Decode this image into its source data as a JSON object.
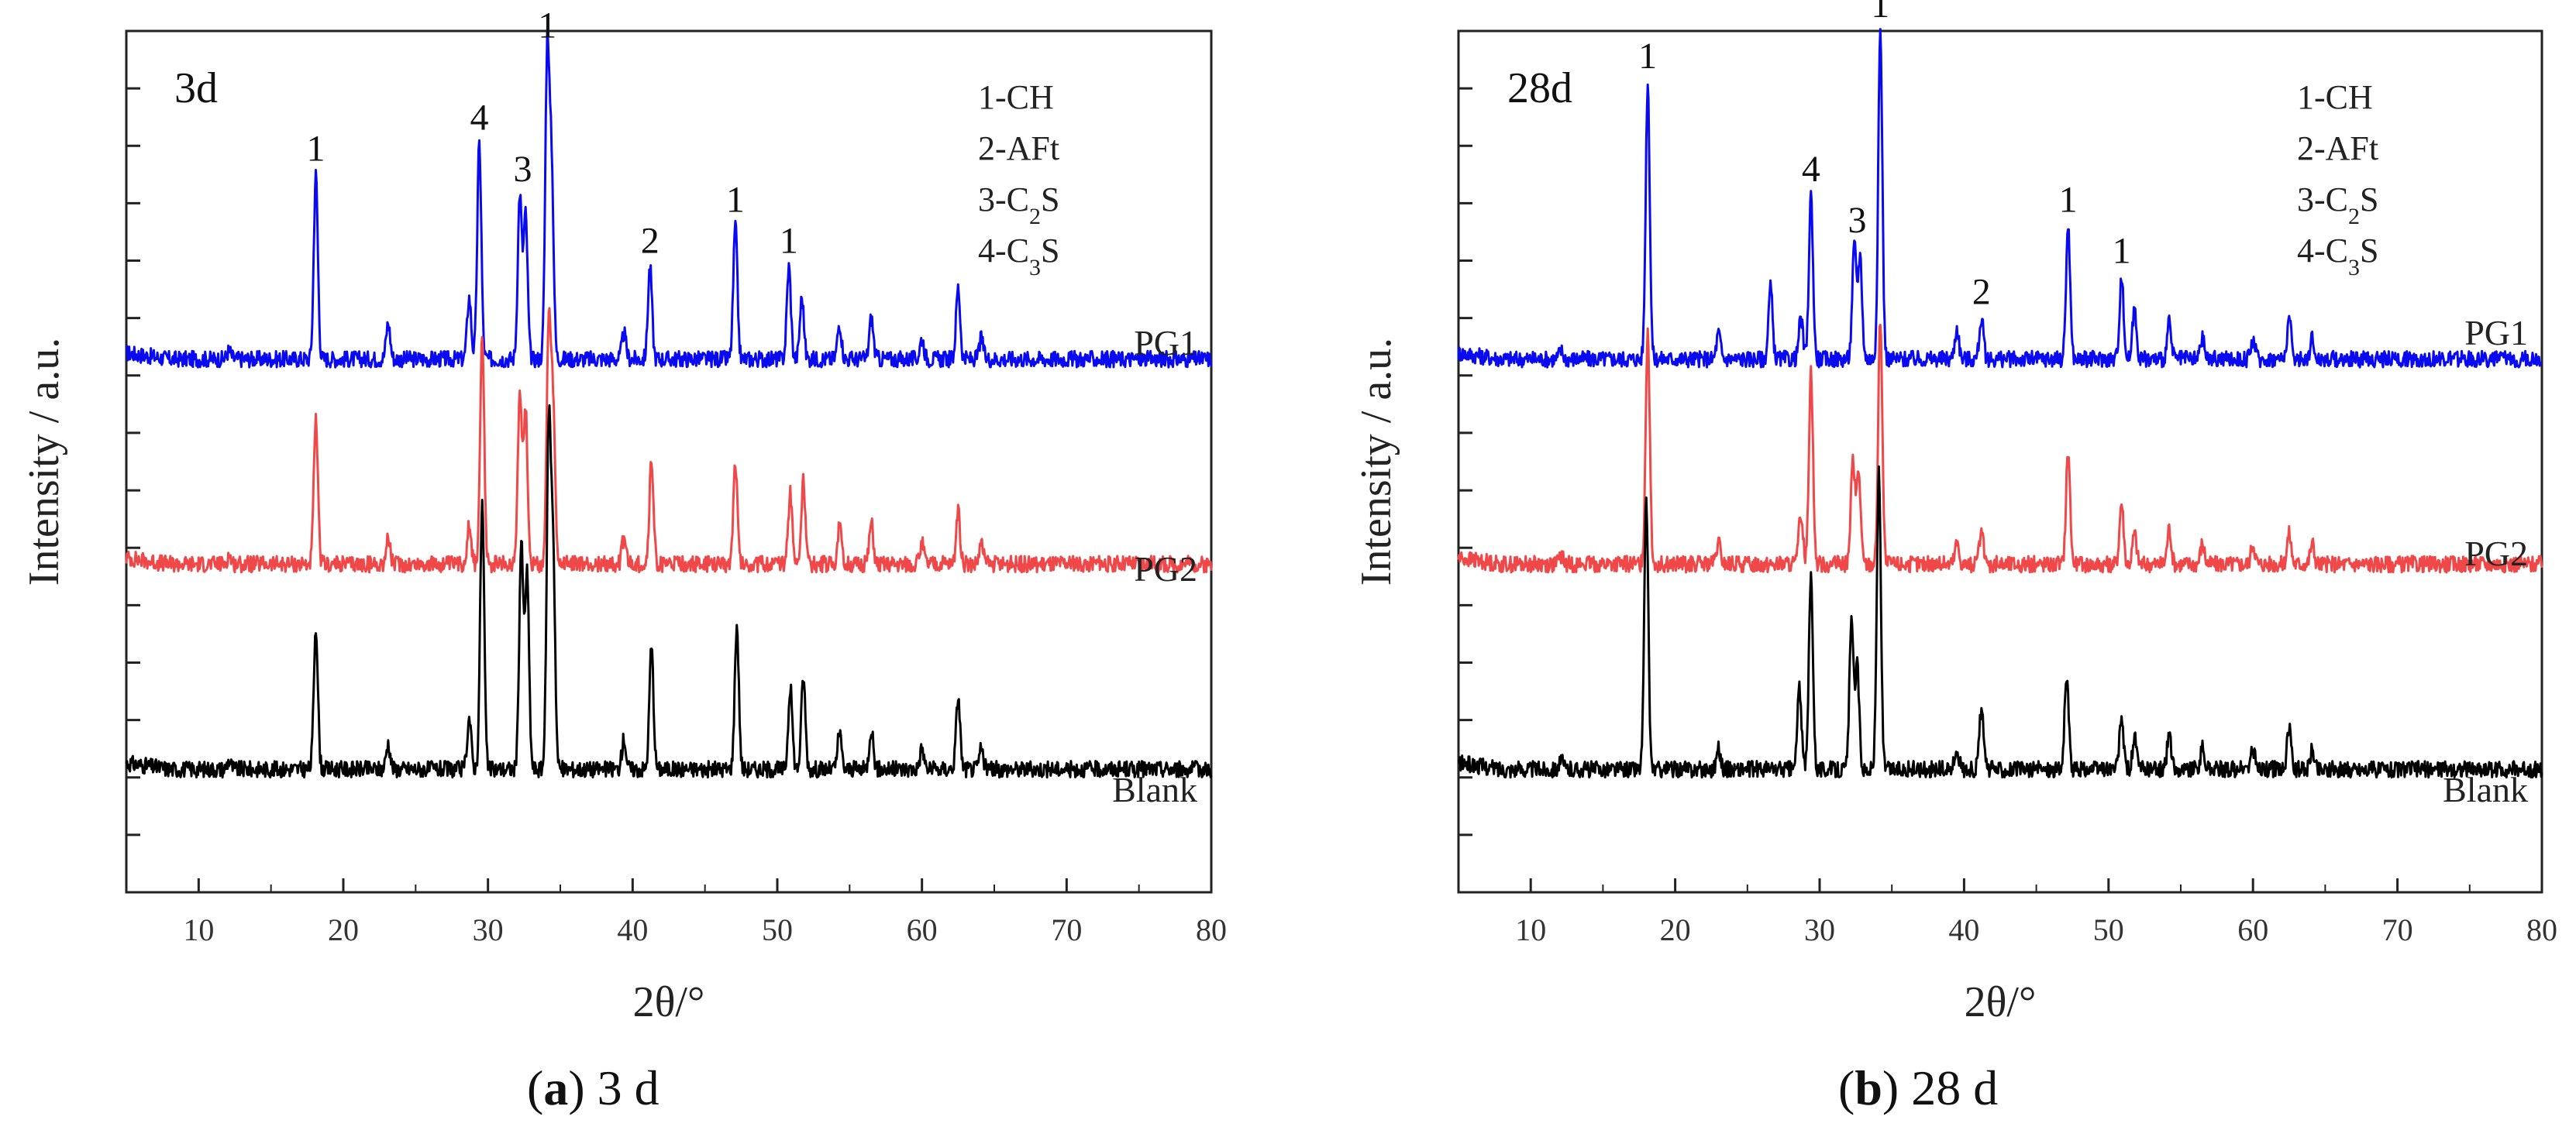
{
  "chart_data": [
    {
      "type": "line",
      "title": "3d",
      "caption_letter": "a",
      "caption_text": "3 d",
      "xlabel": "2θ/°",
      "ylabel": "Intensity / a.u.",
      "xlim": [
        5,
        80
      ],
      "xticks": [
        10,
        20,
        30,
        40,
        50,
        60,
        70,
        80
      ],
      "legend": [
        {
          "label": "1-CH"
        },
        {
          "label": "2-AFt"
        },
        {
          "label": "3-C",
          "sub": "2",
          "tail": "S"
        },
        {
          "label": "4-C",
          "sub": "3",
          "tail": "S"
        }
      ],
      "series": [
        {
          "name": "PG1",
          "color": "#0a0af0",
          "baseline": 2.0,
          "peaks": [
            [
              12.1,
              0.08
            ],
            [
              18.1,
              1.8
            ],
            [
              23.1,
              0.35
            ],
            [
              28.7,
              0.6
            ],
            [
              29.4,
              2.1
            ],
            [
              32.2,
              1.6
            ],
            [
              32.6,
              1.4
            ],
            [
              34.1,
              3.0
            ],
            [
              34.4,
              1.8
            ],
            [
              39.4,
              0.25
            ],
            [
              41.2,
              0.9
            ],
            [
              47.1,
              1.3
            ],
            [
              50.8,
              0.9
            ],
            [
              51.7,
              0.6
            ],
            [
              54.3,
              0.35
            ],
            [
              56.5,
              0.4
            ],
            [
              60.0,
              0.2
            ],
            [
              62.5,
              0.7
            ],
            [
              64.1,
              0.2
            ]
          ],
          "peak_labels": [
            [
              18.1,
              "1"
            ],
            [
              29.4,
              "4"
            ],
            [
              32.4,
              "3"
            ],
            [
              34.1,
              "1"
            ],
            [
              41.2,
              "2"
            ],
            [
              47.1,
              "1"
            ],
            [
              50.8,
              "1"
            ]
          ]
        },
        {
          "name": "PG2",
          "color": "#f04848",
          "baseline": 0.0,
          "peaks": [
            [
              12.1,
              0.08
            ],
            [
              18.1,
              1.4
            ],
            [
              23.1,
              0.25
            ],
            [
              28.7,
              0.4
            ],
            [
              29.6,
              2.2
            ],
            [
              32.2,
              1.7
            ],
            [
              32.6,
              1.5
            ],
            [
              34.2,
              2.3
            ],
            [
              34.5,
              1.5
            ],
            [
              39.4,
              0.25
            ],
            [
              41.3,
              1.0
            ],
            [
              47.1,
              1.0
            ],
            [
              50.9,
              0.7
            ],
            [
              51.8,
              0.8
            ],
            [
              54.3,
              0.35
            ],
            [
              56.5,
              0.4
            ],
            [
              60.0,
              0.2
            ],
            [
              62.5,
              0.5
            ],
            [
              64.1,
              0.2
            ]
          ],
          "peak_labels": []
        },
        {
          "name": "Blank",
          "color": "#000000",
          "baseline": -2.0,
          "peaks": [
            [
              12.1,
              0.08
            ],
            [
              18.1,
              1.4
            ],
            [
              23.1,
              0.25
            ],
            [
              28.7,
              0.5
            ],
            [
              29.6,
              2.6
            ],
            [
              32.3,
              2.2
            ],
            [
              32.7,
              1.9
            ],
            [
              34.2,
              3.3
            ],
            [
              34.5,
              2.1
            ],
            [
              39.4,
              0.3
            ],
            [
              41.3,
              1.2
            ],
            [
              47.2,
              1.4
            ],
            [
              50.9,
              0.8
            ],
            [
              51.8,
              0.9
            ],
            [
              54.3,
              0.35
            ],
            [
              56.5,
              0.4
            ],
            [
              60.0,
              0.2
            ],
            [
              62.5,
              0.7
            ],
            [
              64.1,
              0.2
            ]
          ],
          "peak_labels": []
        }
      ]
    },
    {
      "type": "line",
      "title": "28d",
      "caption_letter": "b",
      "caption_text": "28 d",
      "xlabel": "2θ/°",
      "ylabel": "Intensity / a.u.",
      "xlim": [
        5,
        80
      ],
      "xticks": [
        10,
        20,
        30,
        40,
        50,
        60,
        70,
        80
      ],
      "legend": [
        {
          "label": "1-CH"
        },
        {
          "label": "2-AFt"
        },
        {
          "label": "3-C",
          "sub": "2",
          "tail": "S"
        },
        {
          "label": "4-C",
          "sub": "3",
          "tail": "S"
        }
      ],
      "series": [
        {
          "name": "PG1",
          "color": "#0a0af0",
          "baseline": 2.0,
          "peaks": [
            [
              12.1,
              0.08
            ],
            [
              18.1,
              2.7
            ],
            [
              23.0,
              0.25
            ],
            [
              26.6,
              0.7
            ],
            [
              28.7,
              0.4
            ],
            [
              29.4,
              1.6
            ],
            [
              32.4,
              1.1
            ],
            [
              32.8,
              1.0
            ],
            [
              34.2,
              3.2
            ],
            [
              39.5,
              0.3
            ],
            [
              41.2,
              0.4
            ],
            [
              47.2,
              1.3
            ],
            [
              50.9,
              0.8
            ],
            [
              51.8,
              0.5
            ],
            [
              54.2,
              0.35
            ],
            [
              56.5,
              0.2
            ],
            [
              60.0,
              0.2
            ],
            [
              62.5,
              0.4
            ],
            [
              64.1,
              0.2
            ]
          ],
          "peak_labels": [
            [
              18.1,
              "1"
            ],
            [
              29.4,
              "4"
            ],
            [
              32.6,
              "3"
            ],
            [
              34.2,
              "1"
            ],
            [
              41.2,
              "2"
            ],
            [
              47.2,
              "1"
            ],
            [
              50.9,
              "1"
            ]
          ]
        },
        {
          "name": "PG2",
          "color": "#f04848",
          "baseline": 0.0,
          "peaks": [
            [
              12.1,
              0.08
            ],
            [
              18.1,
              2.3
            ],
            [
              23.0,
              0.2
            ],
            [
              28.7,
              0.5
            ],
            [
              29.4,
              1.9
            ],
            [
              32.3,
              1.0
            ],
            [
              32.7,
              0.9
            ],
            [
              34.2,
              2.4
            ],
            [
              39.5,
              0.2
            ],
            [
              41.2,
              0.3
            ],
            [
              47.2,
              1.1
            ],
            [
              50.9,
              0.6
            ],
            [
              51.8,
              0.3
            ],
            [
              54.2,
              0.35
            ],
            [
              56.5,
              0.2
            ],
            [
              60.0,
              0.2
            ],
            [
              62.5,
              0.3
            ],
            [
              64.1,
              0.2
            ]
          ],
          "peak_labels": []
        },
        {
          "name": "Blank",
          "color": "#000000",
          "baseline": -2.0,
          "peaks": [
            [
              12.1,
              0.08
            ],
            [
              18.0,
              2.6
            ],
            [
              23.0,
              0.2
            ],
            [
              28.6,
              0.8
            ],
            [
              29.4,
              1.9
            ],
            [
              32.2,
              1.4
            ],
            [
              32.6,
              1.0
            ],
            [
              34.1,
              2.9
            ],
            [
              39.5,
              0.2
            ],
            [
              41.2,
              0.6
            ],
            [
              47.1,
              0.9
            ],
            [
              50.9,
              0.5
            ],
            [
              51.8,
              0.3
            ],
            [
              54.2,
              0.35
            ],
            [
              56.5,
              0.2
            ],
            [
              60.0,
              0.2
            ],
            [
              62.5,
              0.4
            ],
            [
              64.1,
              0.2
            ]
          ],
          "peak_labels": []
        }
      ]
    }
  ]
}
